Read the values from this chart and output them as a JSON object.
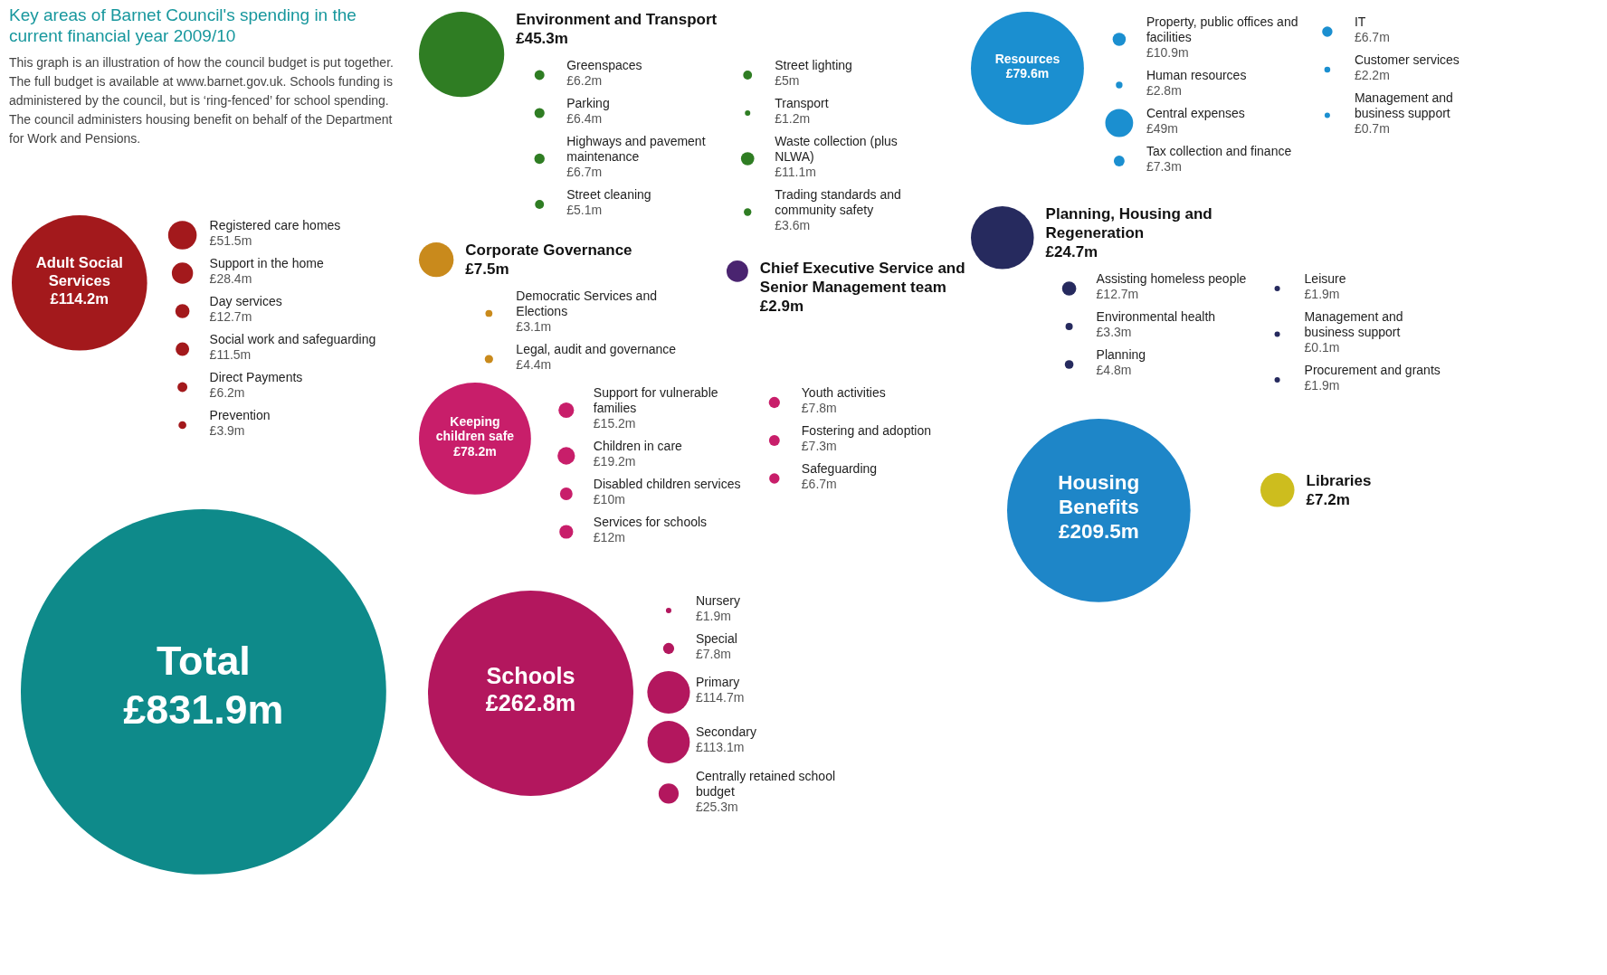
{
  "chart_data": [
    {
      "type": "other",
      "title": "Key areas of Barnet Council's spending in the current financial year 2009/10",
      "subtitle": "This graph is an illustration of how the council budget is put together. The full budget is available at www.barnet.gov.uk. Schools funding is administered by the council, but is ‘ring-fenced’ for school spending. The council administers housing benefit on behalf of the Department for Work and Pensions."
    },
    {
      "type": "other",
      "color": "#a3191c",
      "categories": [
        "Adult Social Services",
        "Registered care homes",
        "Support in the home",
        "Day services",
        "Social work and safeguarding",
        "Direct Payments",
        "Prevention"
      ],
      "values": [
        114.2,
        51.5,
        28.4,
        12.7,
        11.5,
        6.2,
        3.9
      ],
      "value_labels": [
        "£114.2m",
        "£51.5m",
        "£28.4m",
        "£12.7m",
        "£11.5m",
        "£6.2m",
        "£3.9m"
      ]
    },
    {
      "type": "other",
      "color": "#2f7d23",
      "categories": [
        "Environment and Transport",
        "Greenspaces",
        "Parking",
        "Highways and pavement maintenance",
        "Street cleaning",
        "Street lighting",
        "Transport",
        "Waste collection (plus NLWA)",
        "Trading standards and community safety"
      ],
      "values": [
        45.3,
        6.2,
        6.4,
        6.7,
        5.1,
        5,
        1.2,
        11.1,
        3.6
      ],
      "value_labels": [
        "£45.3m",
        "£6.2m",
        "£6.4m",
        "£6.7m",
        "£5.1m",
        "£5m",
        "£1.2m",
        "£11.1m",
        "£3.6m"
      ]
    },
    {
      "type": "other",
      "color": "#c98a1c",
      "categories": [
        "Corporate Governance",
        "Democratic Services and Elections",
        "Legal, audit and governance"
      ],
      "values": [
        7.5,
        3.1,
        4.4
      ],
      "value_labels": [
        "£7.5m",
        "£3.1m",
        "£4.4m"
      ]
    },
    {
      "type": "other",
      "color": "#4a2470",
      "categories": [
        "Chief Executive Service and Senior Management team"
      ],
      "values": [
        2.9
      ],
      "value_labels": [
        "£2.9m"
      ]
    },
    {
      "type": "other",
      "color": "#1b8fd0",
      "categories": [
        "Resources",
        "Property, public offices and facilities",
        "Human resources",
        "Central expenses",
        "Tax collection and finance",
        "IT",
        "Customer services",
        "Management and business support"
      ],
      "values": [
        79.6,
        10.9,
        2.8,
        49,
        7.3,
        6.7,
        2.2,
        0.7
      ],
      "value_labels": [
        "£79.6m",
        "£10.9m",
        "£2.8m",
        "£49m",
        "£7.3m",
        "£6.7m",
        "£2.2m",
        "£0.7m"
      ]
    },
    {
      "type": "other",
      "color": "#1e86c8",
      "categories": [
        "Housing Benefits"
      ],
      "values": [
        209.5
      ],
      "value_labels": [
        "£209.5m"
      ]
    },
    {
      "type": "other",
      "color": "#262a5e",
      "categories": [
        "Planning, Housing and Regeneration",
        "Assisting homeless people",
        "Environmental health",
        "Planning",
        "Leisure",
        "Management and business support",
        "Procurement and grants"
      ],
      "values": [
        24.7,
        12.7,
        3.3,
        4.8,
        1.9,
        0.1,
        1.9
      ],
      "value_labels": [
        "£24.7m",
        "£12.7m",
        "£3.3m",
        "£4.8m",
        "£1.9m",
        "£0.1m",
        "£1.9m"
      ]
    },
    {
      "type": "other",
      "color": "#cdbd1e",
      "categories": [
        "Libraries"
      ],
      "values": [
        7.2
      ],
      "value_labels": [
        "£7.2m"
      ]
    },
    {
      "type": "other",
      "color": "#c81e6a",
      "categories": [
        "Keeping children safe",
        "Support for vulnerable families",
        "Children in care",
        "Disabled children services",
        "Services for schools",
        "Youth activities",
        "Fostering and adoption",
        "Safeguarding"
      ],
      "values": [
        78.2,
        15.2,
        19.2,
        10,
        12,
        7.8,
        7.3,
        6.7
      ],
      "value_labels": [
        "£78.2m",
        "£15.2m",
        "£19.2m",
        "£10m",
        "£12m",
        "£7.8m",
        "£7.3m",
        "£6.7m"
      ]
    },
    {
      "type": "other",
      "color": "#b3175e",
      "categories": [
        "Schools",
        "Nursery",
        "Special",
        "Primary",
        "Secondary",
        "Centrally retained school budget"
      ],
      "values": [
        262.8,
        1.9,
        7.8,
        114.7,
        113.1,
        25.3
      ],
      "value_labels": [
        "£262.8m",
        "£1.9m",
        "£7.8m",
        "£114.7m",
        "£113.1m",
        "£25.3m"
      ]
    },
    {
      "type": "other",
      "color": "#0e8a8a",
      "categories": [
        "Total"
      ],
      "values": [
        831.9
      ],
      "value_labels": [
        "£831.9m"
      ]
    }
  ]
}
